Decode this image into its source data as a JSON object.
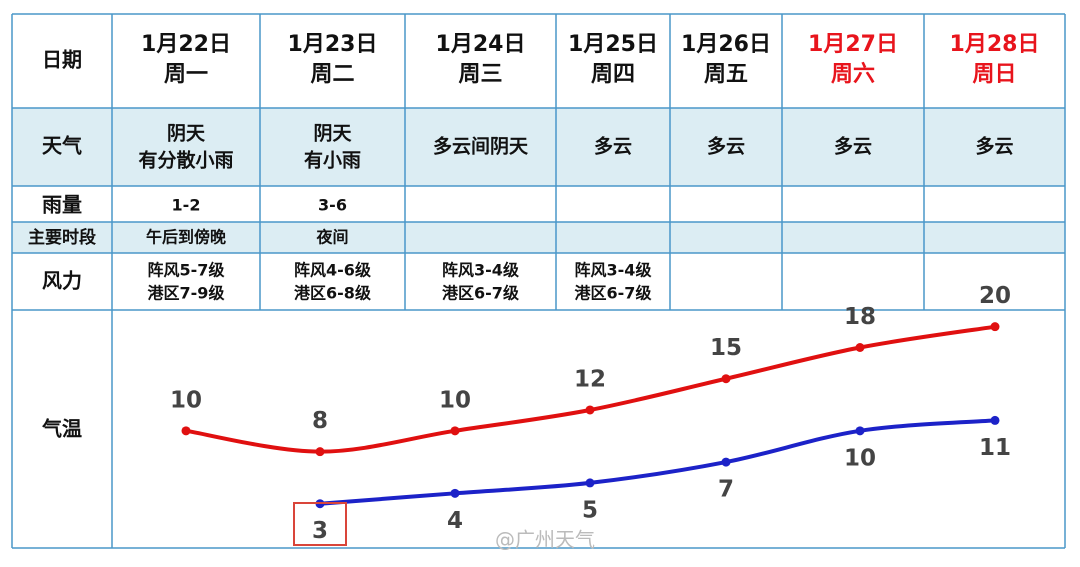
{
  "table": {
    "corner": "日期",
    "columns": [
      {
        "date": "1月22日",
        "weekday": "周一"
      },
      {
        "date": "1月23日",
        "weekday": "周二"
      },
      {
        "date": "1月24日",
        "weekday": "周三"
      },
      {
        "date": "1月25日",
        "weekday": "周四"
      },
      {
        "date": "1月26日",
        "weekday": "周五"
      },
      {
        "date": "1月27日",
        "weekday": "周六",
        "color": "#e8141c"
      },
      {
        "date": "1月28日",
        "weekday": "周日",
        "color": "#e8141c"
      }
    ],
    "row_labels": [
      "天气",
      "雨量",
      "主要时段",
      "风力",
      "气温"
    ],
    "weather": [
      [
        "阴天",
        "有分散小雨"
      ],
      [
        "阴天",
        "有小雨"
      ],
      [
        "多云间阴天"
      ],
      [
        "多云"
      ],
      [
        "多云"
      ],
      [
        "多云"
      ],
      [
        "多云"
      ]
    ],
    "rain": [
      "1-2",
      "3-6"
    ],
    "period": [
      "午后到傍晚",
      "夜间"
    ],
    "wind": [
      [
        "阵风5-7级",
        "港区7-9级"
      ],
      [
        "阵风4-6级",
        "港区6-8级"
      ],
      [
        "阵风3-4级",
        "港区6-7级"
      ],
      [
        "阵风3-4级",
        "港区6-7级"
      ]
    ]
  },
  "chart_data": {
    "type": "line",
    "ylim": [
      -1.25,
      21.6
    ],
    "series": [
      {
        "color": "#e01010",
        "label_side": "above",
        "values": [
          10,
          8,
          10,
          12,
          15,
          18,
          20
        ]
      },
      {
        "color": "#1c22c8",
        "label_side": "below",
        "values": [
          null,
          3,
          4,
          5,
          7,
          10,
          11
        ]
      }
    ]
  },
  "watermark": "@广州天气"
}
